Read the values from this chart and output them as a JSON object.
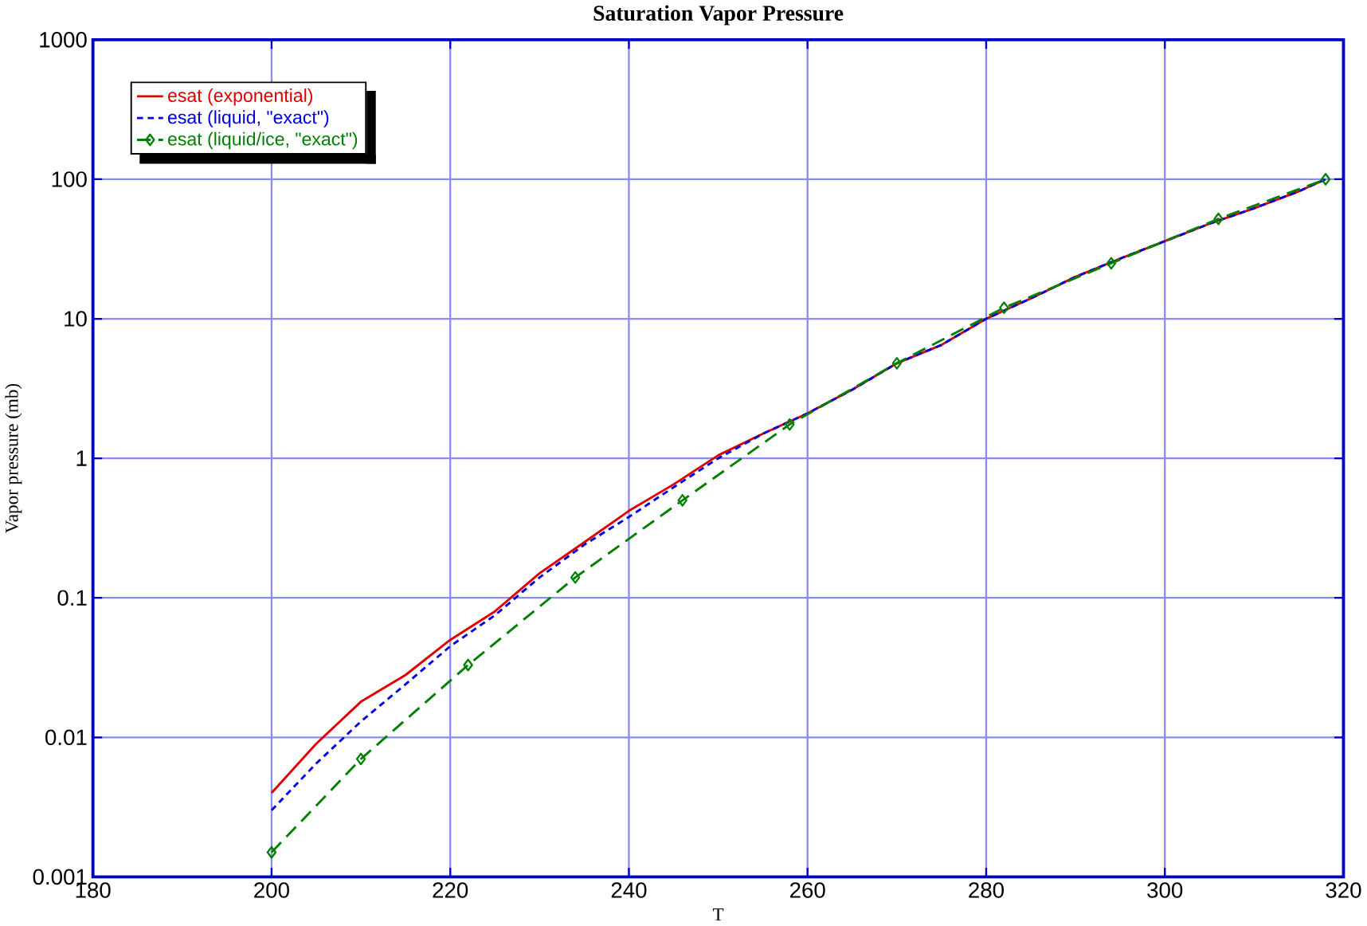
{
  "chart_data": {
    "type": "line",
    "title": "Saturation   Vapor   Pressure",
    "xlabel": "T",
    "ylabel": "Vapor pressure (mb)",
    "log": "y",
    "grid": true,
    "legend": "top left",
    "xlim": [
      180,
      320
    ],
    "xticks": [
      180,
      200,
      220,
      240,
      260,
      280,
      300,
      320
    ],
    "ylim": [
      0.001,
      1000
    ],
    "yticks": [
      0.001,
      0.01,
      0.1,
      1,
      10,
      100,
      1000
    ],
    "series": [
      {
        "name": "esat    (exponential)",
        "color": "#e00000",
        "line_style": "solid",
        "marker": "none",
        "x": [
          200,
          205,
          210,
          215,
          220,
          225,
          230,
          235,
          240,
          245,
          250,
          255,
          260,
          265,
          270,
          275,
          280,
          285,
          290,
          295,
          300,
          305,
          310,
          315,
          318
        ],
        "values": [
          0.004,
          0.009,
          0.018,
          0.028,
          0.05,
          0.08,
          0.15,
          0.25,
          0.42,
          0.65,
          1.05,
          1.5,
          2.1,
          3.1,
          4.8,
          6.5,
          10,
          14,
          20,
          27,
          36,
          48,
          62,
          82,
          100
        ]
      },
      {
        "name": "esat  (liquid,  \"exact\")",
        "color": "#0000e0",
        "line_style": "dotted",
        "marker": "none",
        "x": [
          200,
          205,
          210,
          215,
          220,
          225,
          230,
          235,
          240,
          245,
          250,
          255,
          260,
          265,
          270,
          275,
          280,
          285,
          290,
          295,
          300,
          305,
          310,
          315,
          318
        ],
        "values": [
          0.003,
          0.0065,
          0.013,
          0.024,
          0.045,
          0.075,
          0.14,
          0.24,
          0.38,
          0.62,
          1.0,
          1.5,
          2.1,
          3.1,
          4.8,
          6.5,
          10,
          14,
          20,
          27,
          36,
          48,
          62,
          82,
          100
        ]
      },
      {
        "name": "esat   (liquid/ice,   \"exact\")",
        "color": "#008000",
        "line_style": "dashed",
        "marker": "diamond",
        "x": [
          200,
          210,
          222,
          234,
          246,
          258,
          270,
          282,
          294,
          306,
          318
        ],
        "values": [
          0.0015,
          0.007,
          0.033,
          0.14,
          0.5,
          1.75,
          4.8,
          12,
          25,
          52,
          100
        ]
      }
    ]
  }
}
